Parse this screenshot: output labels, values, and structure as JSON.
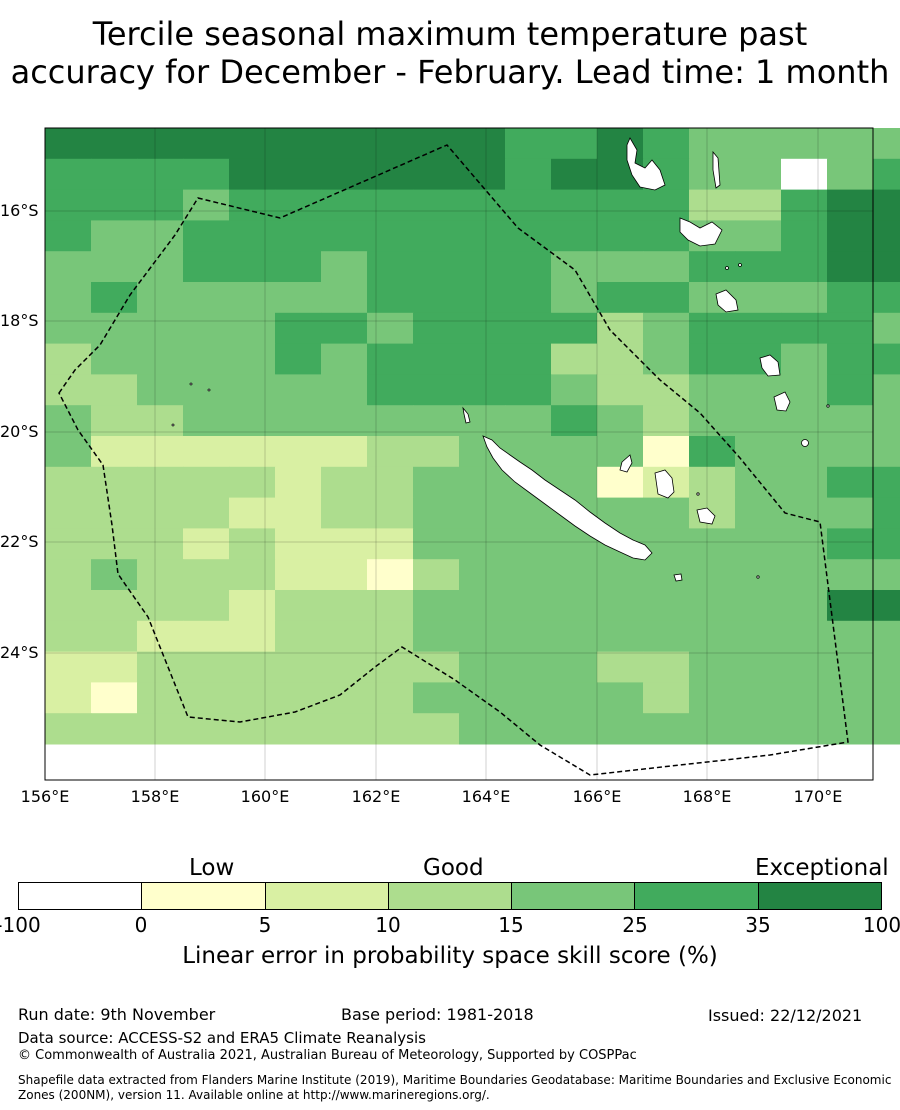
{
  "title_lines": [
    "Tercile seasonal maximum temperature past",
    "accuracy for December - February. Lead time: 1 month"
  ],
  "map": {
    "lon_range": [
      156,
      171
    ],
    "lat_range": [
      -26.3,
      -14.5
    ],
    "lon_labels": [
      "156°E",
      "158°E",
      "160°E",
      "162°E",
      "164°E",
      "166°E",
      "168°E",
      "170°E"
    ],
    "lat_labels": [
      "16°S",
      "18°S",
      "20°S",
      "22°S",
      "24°S"
    ]
  },
  "colorbar": {
    "category_labels": [
      "Low",
      "Good",
      "Exceptional"
    ],
    "tick_labels": [
      "-100",
      "0",
      "5",
      "10",
      "15",
      "25",
      "35",
      "100"
    ],
    "colors": [
      "#ffffff",
      "#ffffcc",
      "#d9f0a3",
      "#addd8e",
      "#78c679",
      "#41ab5d",
      "#238443"
    ],
    "title": "Linear error in probability space skill score (%)"
  },
  "footer": {
    "run_date": "Run date: 9th November",
    "base_period": "Base period: 1981-2018",
    "issued": "Issued: 22/12/2021",
    "data_source": "Data source: ACCESS-S2 and ERA5 Climate Reanalysis",
    "copyright": "© Commonwealth of Australia 2021, Australian Bureau of Meteorology, Supported by COSPPac",
    "shapefile": "Shapefile data extracted from Flanders Marine Institute (2019), Maritime Boundaries Geodatabase: Maritime Boundaries and Exclusive Economic Zones (200NM), version 11. Available online at http://www.marineregions.org/."
  },
  "grid": [
    "66666666665565444444",
    "55556666665665440455",
    "55545555555555335665",
    "54455555555555445665",
    "44455545555444555665",
    "45444445555455444555",
    "44444554555534555545",
    "34444545555334554555",
    "33444445555433444544",
    "43344444444543444445",
    "42222223344441544445",
    "33333233444412344555",
    "33332233444444344455",
    "33323222444444444555",
    "34333221344444444444",
    "33332333444444444664",
    "33222333444444444444",
    "22333333344433444444",
    "21333333444443444444",
    "33333333344444444444"
  ]
}
